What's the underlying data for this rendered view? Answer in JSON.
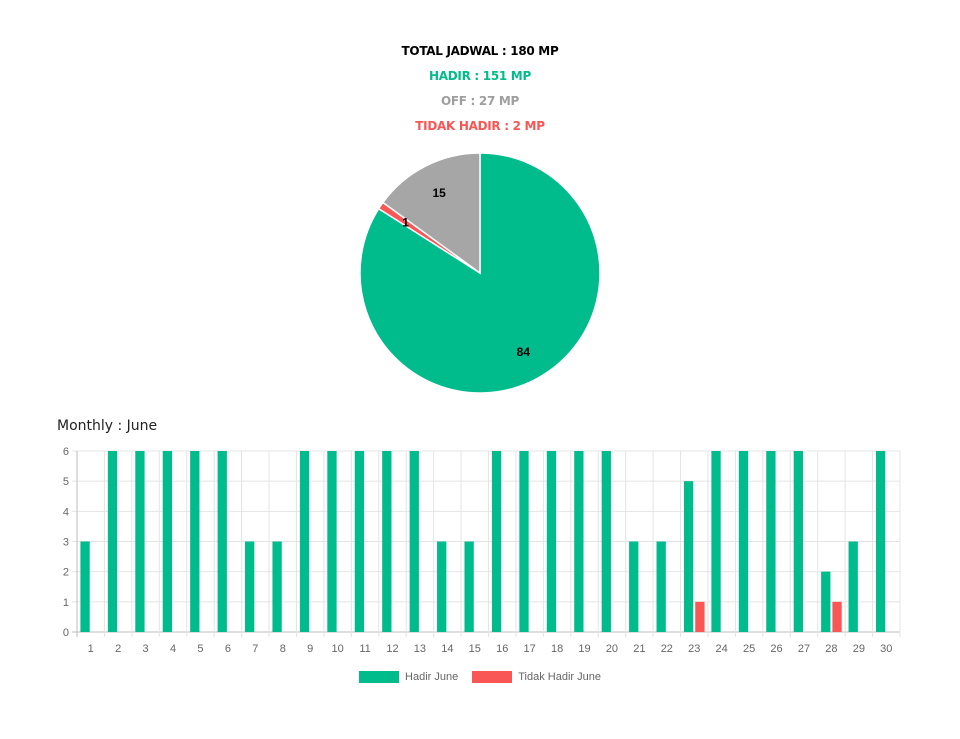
{
  "summary": {
    "total": "TOTAL JADWAL : 180 MP",
    "hadir": "HADIR : 151 MP",
    "off": "OFF : 27 MP",
    "tidak_hadir": "TIDAK HADIR : 2 MP"
  },
  "colors": {
    "hadir": "#00bc8c",
    "off": "#a6a6a6",
    "tidak_hadir": "#f95656",
    "total": "#000000",
    "off_text": "#9e9e9e",
    "grid": "#e4e4e4",
    "tick_text": "#666666"
  },
  "monthly_title": "Monthly : June",
  "chart_data": [
    {
      "type": "pie",
      "slices": [
        {
          "name": "Hadir",
          "value": 84,
          "label": "84"
        },
        {
          "name": "Tidak Hadir",
          "value": 1,
          "label": "1"
        },
        {
          "name": "Off",
          "value": 15,
          "label": "15"
        }
      ]
    },
    {
      "type": "bar",
      "categories": [
        "1",
        "2",
        "3",
        "4",
        "5",
        "6",
        "7",
        "8",
        "9",
        "10",
        "11",
        "12",
        "13",
        "14",
        "15",
        "16",
        "17",
        "18",
        "19",
        "20",
        "21",
        "22",
        "23",
        "24",
        "25",
        "26",
        "27",
        "28",
        "29",
        "30"
      ],
      "series": [
        {
          "name": "Hadir June",
          "values": [
            3,
            6,
            6,
            6,
            6,
            6,
            3,
            3,
            6,
            6,
            6,
            6,
            6,
            3,
            3,
            6,
            6,
            6,
            6,
            6,
            3,
            3,
            5,
            6,
            6,
            6,
            6,
            2,
            3,
            6
          ]
        },
        {
          "name": "Tidak Hadir June",
          "values": [
            0,
            0,
            0,
            0,
            0,
            0,
            0,
            0,
            0,
            0,
            0,
            0,
            0,
            0,
            0,
            0,
            0,
            0,
            0,
            0,
            0,
            0,
            1,
            0,
            0,
            0,
            0,
            1,
            0,
            0
          ]
        }
      ],
      "ylim": [
        0,
        6
      ],
      "yticks": [
        "0",
        "1",
        "2",
        "3",
        "4",
        "5",
        "6"
      ],
      "grid": true,
      "legend": "bottom"
    }
  ]
}
